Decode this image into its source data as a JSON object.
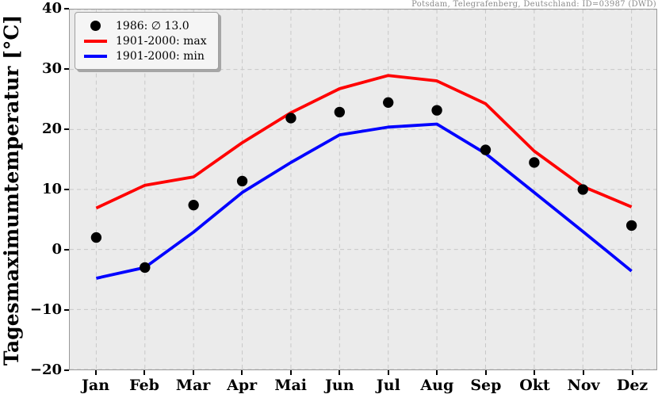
{
  "title": "Potsdam, Telegrafenberg, Deutschland: ID=03987 (DWD)",
  "y_axis_label": "Tagesmaximumtemperatur [°C]",
  "colors": {
    "max_line": "#ff0000",
    "min_line": "#0000ff",
    "dots": "#000000",
    "plot_background": "#ebebeb",
    "grid": "#c8c8c8",
    "title_text": "#8a8a8a"
  },
  "y_tick_labels": [
    "40",
    "30",
    "20",
    "10",
    "0",
    "−10",
    "−20"
  ],
  "chart_data": {
    "type": "line",
    "categories": [
      "Jan",
      "Feb",
      "Mar",
      "Apr",
      "Mai",
      "Jun",
      "Jul",
      "Aug",
      "Sep",
      "Okt",
      "Nov",
      "Dez"
    ],
    "series": [
      {
        "id": "dots-1986",
        "name": "1986: ∅ 13.0",
        "style": "scatter",
        "color": "#000000",
        "values": [
          2.0,
          -3.0,
          7.4,
          11.4,
          21.9,
          22.9,
          24.5,
          23.2,
          16.6,
          14.5,
          10.0,
          4.0
        ]
      },
      {
        "id": "max-line",
        "name": "1901-2000: max",
        "style": "line",
        "color": "#ff0000",
        "values": [
          6.9,
          10.7,
          12.1,
          17.8,
          22.8,
          26.8,
          29.0,
          28.1,
          24.3,
          16.4,
          10.5,
          7.1
        ]
      },
      {
        "id": "min-line",
        "name": "1901-2000: min",
        "style": "line",
        "color": "#0000ff",
        "values": [
          -4.8,
          -3.0,
          2.9,
          9.5,
          14.5,
          19.1,
          20.4,
          20.9,
          16.0,
          9.5,
          3.0,
          -3.6
        ]
      }
    ],
    "title": "Potsdam, Telegrafenberg, Deutschland: ID=03987 (DWD)",
    "xlabel": "",
    "ylabel": "Tagesmaximumtemperatur [°C]",
    "ylim": [
      -20,
      40
    ],
    "ytick_step": 10,
    "grid": true,
    "grid_style": "dashed",
    "legend_position": "upper left"
  }
}
